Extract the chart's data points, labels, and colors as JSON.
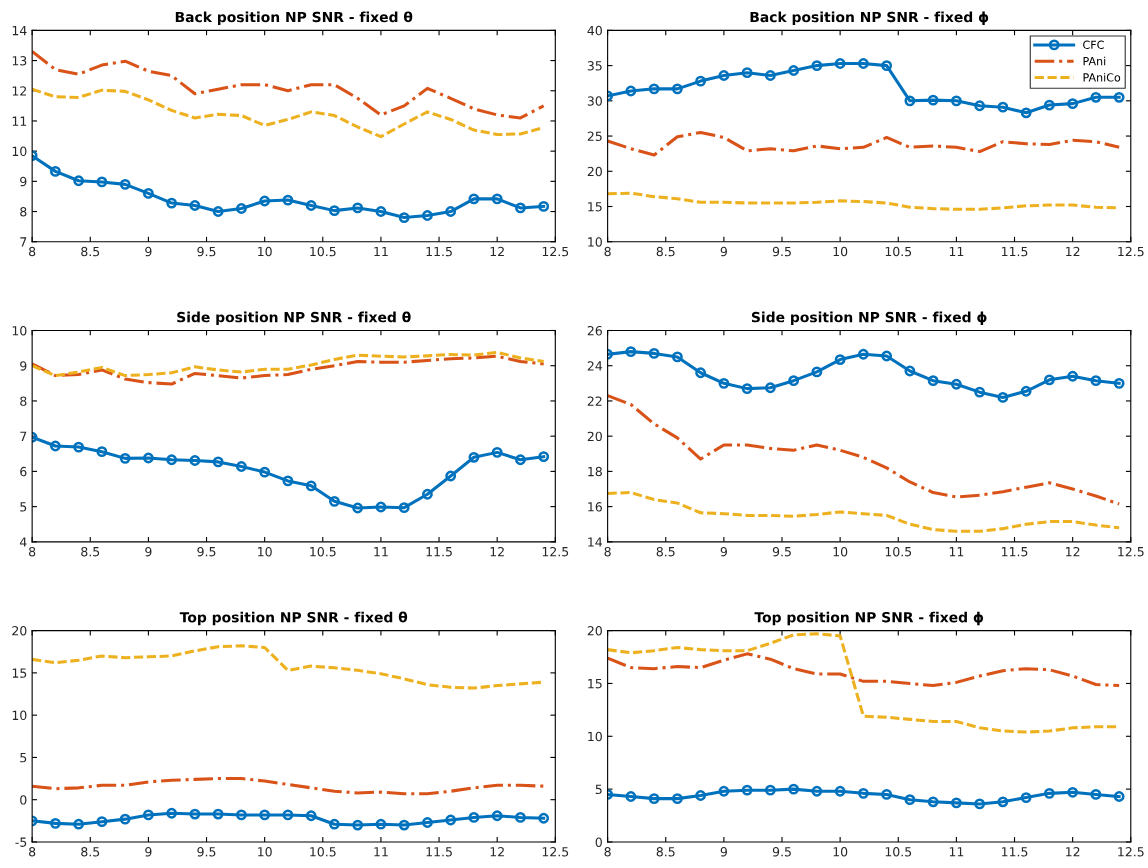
{
  "chart_data": [
    {
      "type": "line",
      "title": "Back position NP SNR - fixed θ",
      "x": [
        8,
        8.2,
        8.4,
        8.6,
        8.8,
        9,
        9.2,
        9.4,
        9.6,
        9.8,
        10,
        10.2,
        10.4,
        10.6,
        10.8,
        11,
        11.2,
        11.4,
        11.6,
        11.8,
        12,
        12.2,
        12.4
      ],
      "xlim": [
        8,
        12.5
      ],
      "xticks": [
        8,
        8.5,
        9,
        9.5,
        10,
        10.5,
        11,
        11.5,
        12,
        12.5
      ],
      "ylim": [
        7,
        14
      ],
      "yticks": [
        7,
        8,
        9,
        10,
        11,
        12,
        13,
        14
      ],
      "grid": false,
      "legend": false,
      "series": [
        {
          "color": "#0072bd",
          "marker": "circle",
          "line_style": "solid",
          "values": [
            9.85,
            9.33,
            9.02,
            8.98,
            8.9,
            8.6,
            8.28,
            8.2,
            8.0,
            8.1,
            8.35,
            8.38,
            8.2,
            8.03,
            8.12,
            8.0,
            7.8,
            7.87,
            8.0,
            8.42,
            8.42,
            8.12,
            8.17
          ]
        },
        {
          "color": "#d95319",
          "marker": "none",
          "line_style": "dashdot",
          "values": [
            13.3,
            12.7,
            12.55,
            12.85,
            12.98,
            12.65,
            12.5,
            11.9,
            12.05,
            12.2,
            12.2,
            12.0,
            12.2,
            12.2,
            11.75,
            11.2,
            11.5,
            12.08,
            11.75,
            11.4,
            11.2,
            11.1,
            11.5
          ]
        },
        {
          "color": "#edb120",
          "marker": "none",
          "line_style": "dashed",
          "values": [
            12.05,
            11.8,
            11.78,
            12.02,
            11.98,
            11.7,
            11.35,
            11.1,
            11.22,
            11.18,
            10.85,
            11.05,
            11.3,
            11.18,
            10.8,
            10.48,
            10.9,
            11.3,
            11.05,
            10.7,
            10.55,
            10.57,
            10.78
          ]
        }
      ]
    },
    {
      "type": "line",
      "title": "Back position NP SNR - fixed ϕ",
      "x": [
        8,
        8.2,
        8.4,
        8.6,
        8.8,
        9,
        9.2,
        9.4,
        9.6,
        9.8,
        10,
        10.2,
        10.4,
        10.6,
        10.8,
        11,
        11.2,
        11.4,
        11.6,
        11.8,
        12,
        12.2,
        12.4
      ],
      "xlim": [
        8,
        12.5
      ],
      "xticks": [
        8,
        8.5,
        9,
        9.5,
        10,
        10.5,
        11,
        11.5,
        12,
        12.5
      ],
      "ylim": [
        10,
        40
      ],
      "yticks": [
        10,
        15,
        20,
        25,
        30,
        35,
        40
      ],
      "grid": false,
      "legend": "top right",
      "series": [
        {
          "name": "CFC",
          "color": "#0072bd",
          "marker": "circle",
          "line_style": "solid",
          "values": [
            30.7,
            31.4,
            31.7,
            31.7,
            32.8,
            33.6,
            34.0,
            33.6,
            34.3,
            35.0,
            35.3,
            35.3,
            35.0,
            30.0,
            30.1,
            30.0,
            29.3,
            29.1,
            28.3,
            29.4,
            29.6,
            30.5,
            30.5
          ]
        },
        {
          "name": "PAni",
          "color": "#d95319",
          "marker": "none",
          "line_style": "dashdot",
          "values": [
            24.3,
            23.2,
            22.3,
            24.9,
            25.5,
            24.8,
            22.9,
            23.2,
            22.9,
            23.6,
            23.2,
            23.4,
            24.8,
            23.4,
            23.6,
            23.4,
            22.8,
            24.2,
            23.9,
            23.8,
            24.4,
            24.2,
            23.4
          ]
        },
        {
          "name": "PAniCo",
          "color": "#edb120",
          "marker": "none",
          "line_style": "dashed",
          "values": [
            16.8,
            16.9,
            16.4,
            16.1,
            15.6,
            15.6,
            15.5,
            15.5,
            15.5,
            15.6,
            15.8,
            15.7,
            15.5,
            14.9,
            14.7,
            14.6,
            14.6,
            14.8,
            15.1,
            15.2,
            15.2,
            14.9,
            14.8
          ]
        }
      ]
    },
    {
      "type": "line",
      "title": "Side position NP SNR - fixed θ",
      "x": [
        8,
        8.2,
        8.4,
        8.6,
        8.8,
        9,
        9.2,
        9.4,
        9.6,
        9.8,
        10,
        10.2,
        10.4,
        10.6,
        10.8,
        11,
        11.2,
        11.4,
        11.6,
        11.8,
        12,
        12.2,
        12.4
      ],
      "xlim": [
        8,
        12.5
      ],
      "xticks": [
        8,
        8.5,
        9,
        9.5,
        10,
        10.5,
        11,
        11.5,
        12,
        12.5
      ],
      "ylim": [
        4,
        10
      ],
      "yticks": [
        4,
        5,
        6,
        7,
        8,
        9,
        10
      ],
      "grid": false,
      "legend": false,
      "series": [
        {
          "color": "#0072bd",
          "marker": "circle",
          "line_style": "solid",
          "values": [
            6.97,
            6.72,
            6.69,
            6.56,
            6.37,
            6.38,
            6.33,
            6.31,
            6.27,
            6.14,
            5.98,
            5.73,
            5.59,
            5.15,
            4.96,
            4.99,
            4.97,
            5.35,
            5.87,
            6.4,
            6.54,
            6.33,
            6.42
          ]
        },
        {
          "color": "#d95319",
          "marker": "none",
          "line_style": "dashdot",
          "values": [
            9.05,
            8.72,
            8.75,
            8.88,
            8.62,
            8.52,
            8.48,
            8.78,
            8.72,
            8.65,
            8.72,
            8.75,
            8.9,
            9.0,
            9.12,
            9.1,
            9.1,
            9.15,
            9.2,
            9.22,
            9.27,
            9.12,
            9.05
          ]
        },
        {
          "color": "#edb120",
          "marker": "none",
          "line_style": "dashed",
          "values": [
            9.0,
            8.72,
            8.82,
            8.95,
            8.72,
            8.75,
            8.8,
            8.97,
            8.88,
            8.82,
            8.9,
            8.9,
            9.02,
            9.18,
            9.3,
            9.27,
            9.25,
            9.28,
            9.32,
            9.3,
            9.38,
            9.22,
            9.12
          ]
        }
      ]
    },
    {
      "type": "line",
      "title": "Side position NP SNR - fixed ϕ",
      "x": [
        8,
        8.2,
        8.4,
        8.6,
        8.8,
        9,
        9.2,
        9.4,
        9.6,
        9.8,
        10,
        10.2,
        10.4,
        10.6,
        10.8,
        11,
        11.2,
        11.4,
        11.6,
        11.8,
        12,
        12.2,
        12.4
      ],
      "xlim": [
        8,
        12.5
      ],
      "xticks": [
        8,
        8.5,
        9,
        9.5,
        10,
        10.5,
        11,
        11.5,
        12,
        12.5
      ],
      "ylim": [
        14,
        26
      ],
      "yticks": [
        14,
        16,
        18,
        20,
        22,
        24,
        26
      ],
      "grid": false,
      "legend": false,
      "series": [
        {
          "color": "#0072bd",
          "marker": "circle",
          "line_style": "solid",
          "values": [
            24.65,
            24.8,
            24.7,
            24.5,
            23.6,
            23.0,
            22.7,
            22.75,
            23.15,
            23.65,
            24.35,
            24.65,
            24.55,
            23.7,
            23.15,
            22.95,
            22.5,
            22.2,
            22.55,
            23.2,
            23.4,
            23.15,
            23.0
          ]
        },
        {
          "color": "#d95319",
          "marker": "none",
          "line_style": "dashdot",
          "values": [
            22.3,
            21.8,
            20.7,
            19.9,
            18.7,
            19.5,
            19.5,
            19.3,
            19.2,
            19.5,
            19.2,
            18.8,
            18.2,
            17.4,
            16.8,
            16.55,
            16.65,
            16.85,
            17.1,
            17.35,
            17.0,
            16.6,
            16.15
          ]
        },
        {
          "color": "#edb120",
          "marker": "none",
          "line_style": "dashed",
          "values": [
            16.75,
            16.8,
            16.4,
            16.2,
            15.65,
            15.6,
            15.5,
            15.5,
            15.45,
            15.55,
            15.7,
            15.6,
            15.5,
            15.0,
            14.7,
            14.6,
            14.6,
            14.75,
            15.0,
            15.15,
            15.15,
            14.95,
            14.8
          ]
        }
      ]
    },
    {
      "type": "line",
      "title": "Top position NP SNR - fixed θ",
      "x": [
        8,
        8.2,
        8.4,
        8.6,
        8.8,
        9,
        9.2,
        9.4,
        9.6,
        9.8,
        10,
        10.2,
        10.4,
        10.6,
        10.8,
        11,
        11.2,
        11.4,
        11.6,
        11.8,
        12,
        12.2,
        12.4
      ],
      "xlim": [
        8,
        12.5
      ],
      "xticks": [
        8,
        8.5,
        9,
        9.5,
        10,
        10.5,
        11,
        11.5,
        12,
        12.5
      ],
      "ylim": [
        -5,
        20
      ],
      "yticks": [
        -5,
        0,
        5,
        10,
        15,
        20
      ],
      "grid": false,
      "legend": false,
      "series": [
        {
          "color": "#0072bd",
          "marker": "circle",
          "line_style": "solid",
          "values": [
            -2.5,
            -2.8,
            -2.9,
            -2.6,
            -2.3,
            -1.8,
            -1.6,
            -1.7,
            -1.7,
            -1.8,
            -1.8,
            -1.8,
            -1.9,
            -2.9,
            -3.0,
            -2.9,
            -3.0,
            -2.7,
            -2.4,
            -2.1,
            -1.9,
            -2.1,
            -2.2
          ]
        },
        {
          "color": "#d95319",
          "marker": "none",
          "line_style": "dashdot",
          "values": [
            1.6,
            1.3,
            1.4,
            1.7,
            1.7,
            2.1,
            2.3,
            2.4,
            2.5,
            2.5,
            2.2,
            1.8,
            1.4,
            1.0,
            0.8,
            0.9,
            0.7,
            0.7,
            1.0,
            1.4,
            1.7,
            1.7,
            1.6
          ]
        },
        {
          "color": "#edb120",
          "marker": "none",
          "line_style": "dashed",
          "values": [
            16.6,
            16.2,
            16.5,
            17.0,
            16.8,
            16.9,
            17.0,
            17.6,
            18.1,
            18.2,
            18.0,
            15.3,
            15.8,
            15.6,
            15.3,
            14.9,
            14.3,
            13.6,
            13.3,
            13.2,
            13.5,
            13.7,
            13.9
          ]
        }
      ]
    },
    {
      "type": "line",
      "title": "Top position NP SNR - fixed ϕ",
      "x": [
        8,
        8.2,
        8.4,
        8.6,
        8.8,
        9,
        9.2,
        9.4,
        9.6,
        9.8,
        10,
        10.2,
        10.4,
        10.6,
        10.8,
        11,
        11.2,
        11.4,
        11.6,
        11.8,
        12,
        12.2,
        12.4
      ],
      "xlim": [
        8,
        12.5
      ],
      "xticks": [
        8,
        8.5,
        9,
        9.5,
        10,
        10.5,
        11,
        11.5,
        12,
        12.5
      ],
      "ylim": [
        0,
        20
      ],
      "yticks": [
        0,
        5,
        10,
        15,
        20
      ],
      "grid": false,
      "legend": false,
      "series": [
        {
          "color": "#0072bd",
          "marker": "circle",
          "line_style": "solid",
          "values": [
            4.5,
            4.3,
            4.1,
            4.1,
            4.4,
            4.8,
            4.9,
            4.9,
            5.0,
            4.8,
            4.8,
            4.6,
            4.5,
            4.0,
            3.8,
            3.7,
            3.6,
            3.8,
            4.2,
            4.6,
            4.7,
            4.5,
            4.3
          ]
        },
        {
          "color": "#d95319",
          "marker": "none",
          "line_style": "dashdot",
          "values": [
            17.4,
            16.5,
            16.4,
            16.6,
            16.5,
            17.2,
            17.8,
            17.3,
            16.4,
            15.9,
            15.9,
            15.2,
            15.2,
            15.0,
            14.8,
            15.1,
            15.7,
            16.2,
            16.4,
            16.3,
            15.7,
            14.9,
            14.8
          ]
        },
        {
          "color": "#edb120",
          "marker": "none",
          "line_style": "dashed",
          "values": [
            18.2,
            17.9,
            18.1,
            18.4,
            18.2,
            18.1,
            18.1,
            18.8,
            19.6,
            19.7,
            19.5,
            11.9,
            11.8,
            11.6,
            11.4,
            11.4,
            10.8,
            10.5,
            10.4,
            10.5,
            10.8,
            10.9,
            10.9
          ]
        }
      ]
    }
  ]
}
